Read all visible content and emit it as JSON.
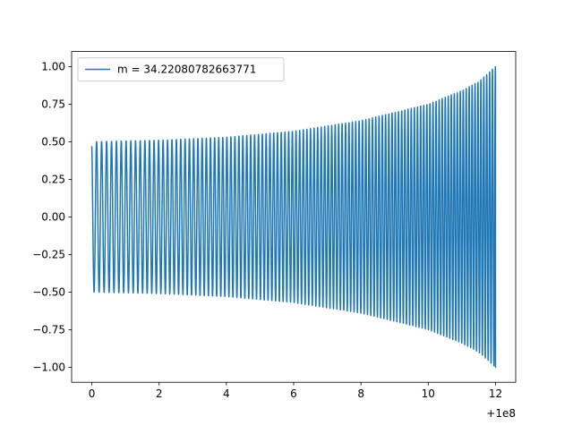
{
  "chart_data": {
    "type": "line",
    "title": "",
    "xlabel": "",
    "ylabel": "",
    "x_offset_label": "+1e8",
    "xlim": [
      -0.6,
      12.6
    ],
    "ylim": [
      -1.1,
      1.1
    ],
    "x_ticks": [
      {
        "value": 0,
        "label": "0"
      },
      {
        "value": 2,
        "label": "2"
      },
      {
        "value": 4,
        "label": "4"
      },
      {
        "value": 6,
        "label": "6"
      },
      {
        "value": 8,
        "label": "8"
      },
      {
        "value": 10,
        "label": "10"
      },
      {
        "value": 12,
        "label": "12"
      }
    ],
    "y_ticks": [
      {
        "value": 1.0,
        "label": "1.00"
      },
      {
        "value": 0.75,
        "label": "0.75"
      },
      {
        "value": 0.5,
        "label": "0.50"
      },
      {
        "value": 0.25,
        "label": "0.25"
      },
      {
        "value": 0.0,
        "label": "0.00"
      },
      {
        "value": -0.25,
        "label": "−0.25"
      },
      {
        "value": -0.5,
        "label": "−0.50"
      },
      {
        "value": -0.75,
        "label": "−0.75"
      },
      {
        "value": -1.0,
        "label": "−1.00"
      }
    ],
    "grid": false,
    "legend_position": "top-left",
    "series": [
      {
        "name": "m = 34.22080782663771",
        "color": "#1f77b4",
        "oscillation_cycles": 110,
        "envelope": [
          {
            "x": 0.0,
            "amp": 0.5
          },
          {
            "x": 2.0,
            "amp": 0.51
          },
          {
            "x": 4.0,
            "amp": 0.53
          },
          {
            "x": 6.0,
            "amp": 0.57
          },
          {
            "x": 8.0,
            "amp": 0.64
          },
          {
            "x": 10.0,
            "amp": 0.75
          },
          {
            "x": 11.0,
            "amp": 0.84
          },
          {
            "x": 11.5,
            "amp": 0.9
          },
          {
            "x": 12.0,
            "amp": 1.0
          }
        ],
        "start_value": 0.47,
        "end_value": -0.33
      }
    ]
  }
}
